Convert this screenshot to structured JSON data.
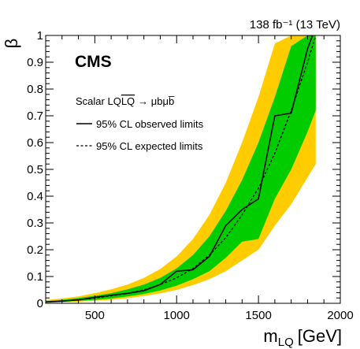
{
  "chart_data": {
    "type": "line",
    "lumi_label": "138 fb⁻¹ (13 TeV)",
    "experiment": "CMS",
    "process_label": "Scalar LQ",
    "process_bar": "LQ",
    "process_arrow": "→ μbμb̅",
    "xlabel_main": "m",
    "xlabel_sub": "LQ",
    "xlabel_unit": "[GeV]",
    "ylabel": "β",
    "xlim": [
      200,
      2000
    ],
    "ylim": [
      0,
      1
    ],
    "x_ticks": [
      500,
      1000,
      1500,
      2000
    ],
    "y_ticks": [
      0,
      0.1,
      0.2,
      0.3,
      0.4,
      0.5,
      0.6,
      0.7,
      0.8,
      0.9,
      1
    ],
    "y_tick_labels": [
      "0",
      "0.1",
      "0.2",
      "0.3",
      "0.4",
      "0.5",
      "0.6",
      "0.7",
      "0.8",
      "0.9",
      "1"
    ],
    "x_tick_labels": [
      "500",
      "1000",
      "1500",
      "2000"
    ],
    "legend": {
      "placement": "upper-left",
      "observed_label": "95% CL observed limits",
      "expected_label": "95% CL expected limits"
    },
    "colors": {
      "band_2sigma": "#ffcc00",
      "band_1sigma": "#00cc00",
      "observed": "#000000",
      "expected": "#000000"
    },
    "series": [
      {
        "name": "95% CL observed limits",
        "style": "solid",
        "points": [
          [
            200,
            0.005
          ],
          [
            300,
            0.008
          ],
          [
            400,
            0.013
          ],
          [
            500,
            0.022
          ],
          [
            600,
            0.03
          ],
          [
            700,
            0.037
          ],
          [
            800,
            0.047
          ],
          [
            900,
            0.07
          ],
          [
            1000,
            0.12
          ],
          [
            1100,
            0.125
          ],
          [
            1200,
            0.175
          ],
          [
            1300,
            0.29
          ],
          [
            1400,
            0.35
          ],
          [
            1500,
            0.39
          ],
          [
            1600,
            0.7
          ],
          [
            1700,
            0.71
          ],
          [
            1800,
            0.95
          ],
          [
            1830,
            1.0
          ]
        ]
      },
      {
        "name": "95% CL expected limits",
        "style": "dashed",
        "points": [
          [
            200,
            0.005
          ],
          [
            300,
            0.008
          ],
          [
            400,
            0.013
          ],
          [
            500,
            0.02
          ],
          [
            600,
            0.028
          ],
          [
            700,
            0.037
          ],
          [
            800,
            0.05
          ],
          [
            900,
            0.07
          ],
          [
            1000,
            0.095
          ],
          [
            1100,
            0.13
          ],
          [
            1200,
            0.18
          ],
          [
            1300,
            0.245
          ],
          [
            1400,
            0.33
          ],
          [
            1500,
            0.43
          ],
          [
            1600,
            0.56
          ],
          [
            1700,
            0.72
          ],
          [
            1800,
            0.9
          ],
          [
            1850,
            1.0
          ]
        ]
      }
    ],
    "bands": {
      "sigma1": {
        "x": [
          200,
          300,
          400,
          500,
          600,
          700,
          800,
          900,
          1000,
          1100,
          1200,
          1300,
          1400,
          1500,
          1600,
          1700,
          1800,
          1850
        ],
        "lower": [
          0.003,
          0.005,
          0.009,
          0.013,
          0.018,
          0.026,
          0.035,
          0.048,
          0.066,
          0.09,
          0.12,
          0.17,
          0.23,
          0.24,
          0.39,
          0.5,
          0.64,
          0.72
        ],
        "upper": [
          0.008,
          0.013,
          0.02,
          0.028,
          0.038,
          0.052,
          0.07,
          0.095,
          0.13,
          0.18,
          0.25,
          0.345,
          0.46,
          0.6,
          0.77,
          0.96,
          1.0,
          1.0
        ]
      },
      "sigma2": {
        "x": [
          200,
          300,
          400,
          500,
          600,
          700,
          800,
          900,
          1000,
          1100,
          1200,
          1300,
          1400,
          1500,
          1600,
          1700,
          1800,
          1850
        ],
        "lower": [
          0.002,
          0.004,
          0.006,
          0.009,
          0.013,
          0.019,
          0.027,
          0.037,
          0.05,
          0.068,
          0.09,
          0.12,
          0.16,
          0.2,
          0.29,
          0.37,
          0.47,
          0.52
        ],
        "upper": [
          0.012,
          0.018,
          0.026,
          0.038,
          0.052,
          0.07,
          0.095,
          0.128,
          0.175,
          0.24,
          0.33,
          0.45,
          0.6,
          0.77,
          0.97,
          1.0,
          1.0,
          1.0
        ]
      }
    }
  }
}
